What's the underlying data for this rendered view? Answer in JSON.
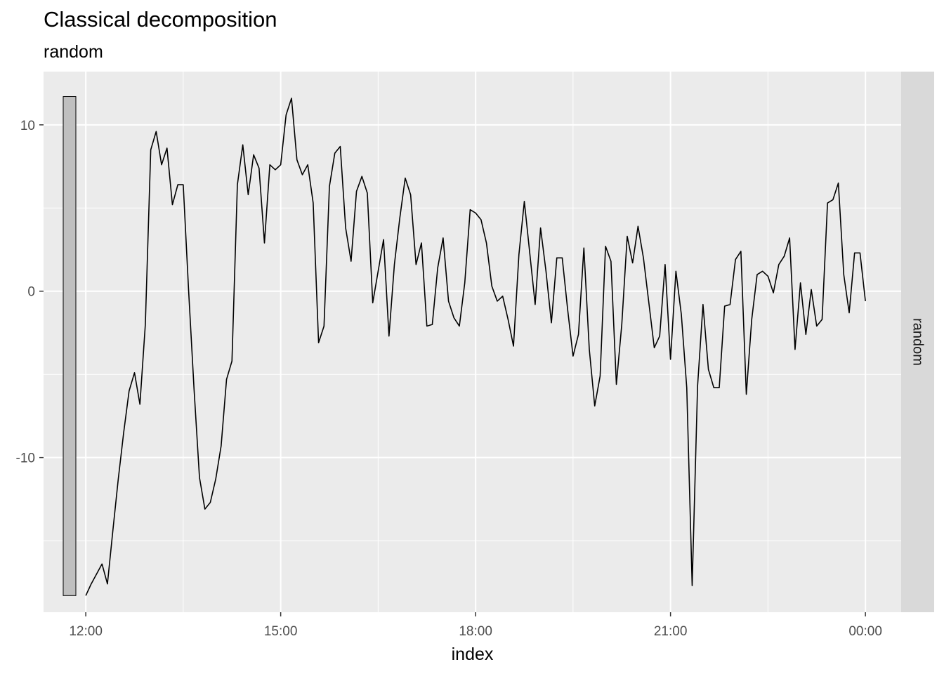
{
  "chart_data": {
    "type": "line",
    "title": "Classical decomposition",
    "subtitle": "random",
    "xlabel": "index",
    "ylabel": "",
    "facet_label": "random",
    "x_unit": "hours",
    "x_start": 12.0,
    "x_step": 0.083333,
    "xlim": [
      11.35,
      24.55
    ],
    "ylim": [
      -19.3,
      13.2
    ],
    "x_ticks": [
      {
        "value": 12,
        "label": "12:00"
      },
      {
        "value": 15,
        "label": "15:00"
      },
      {
        "value": 18,
        "label": "18:00"
      },
      {
        "value": 21,
        "label": "21:00"
      },
      {
        "value": 24,
        "label": "00:00"
      }
    ],
    "y_ticks": [
      {
        "value": -10,
        "label": "-10"
      },
      {
        "value": 0,
        "label": "0"
      },
      {
        "value": 10,
        "label": "10"
      }
    ],
    "scale_bar": {
      "x": 11.75,
      "ymin": -18.3,
      "ymax": 11.7
    },
    "grid": true,
    "colors": {
      "panel": "#ebebeb",
      "grid": "#ffffff",
      "strip": "#d9d9d9",
      "line": "#000000",
      "bar_fill": "#bfbfbf"
    },
    "series": [
      {
        "values": [
          -18.3,
          -17.6,
          -17.0,
          -16.4,
          -17.6,
          -14.4,
          -11.3,
          -8.5,
          -6.0,
          -4.9,
          -6.8,
          -2.0,
          8.5,
          9.6,
          7.6,
          8.6,
          5.2,
          6.4,
          6.4,
          0.0,
          -5.9,
          -11.2,
          -13.1,
          -12.7,
          -11.3,
          -9.3,
          -5.3,
          -4.2,
          6.4,
          8.8,
          5.8,
          8.2,
          7.4,
          2.9,
          7.6,
          7.3,
          7.6,
          10.6,
          11.6,
          7.9,
          7.0,
          7.6,
          5.3,
          -3.1,
          -2.1,
          6.3,
          8.3,
          8.7,
          3.8,
          1.8,
          6.0,
          6.9,
          5.9,
          -0.7,
          1.2,
          3.1,
          -2.7,
          1.6,
          4.4,
          6.8,
          5.8,
          1.6,
          2.9,
          -2.1,
          -2.0,
          1.4,
          3.2,
          -0.6,
          -1.6,
          -2.1,
          0.5,
          4.9,
          4.7,
          4.3,
          2.9,
          0.3,
          -0.6,
          -0.3,
          -1.7,
          -3.3,
          2.2,
          5.4,
          2.3,
          -0.8,
          3.8,
          1.2,
          -1.9,
          2.0,
          2.0,
          -1.1,
          -3.9,
          -2.6,
          2.6,
          -3.5,
          -6.9,
          -5.1,
          2.7,
          1.8,
          -5.6,
          -2.0,
          3.3,
          1.7,
          3.9,
          2.0,
          -0.7,
          -3.4,
          -2.7,
          1.6,
          -4.1,
          1.2,
          -1.4,
          -5.8,
          -17.7,
          -5.7,
          -0.8,
          -4.7,
          -5.8,
          -5.8,
          -0.9,
          -0.8,
          1.9,
          2.4,
          -6.2,
          -1.7,
          1.0,
          1.2,
          0.9,
          -0.1,
          1.6,
          2.1,
          3.2,
          -3.5,
          0.5,
          -2.6,
          0.1,
          -2.1,
          -1.7,
          5.3,
          5.5,
          6.5,
          1.0,
          -1.3,
          2.3,
          2.3,
          -0.6
        ]
      }
    ]
  }
}
